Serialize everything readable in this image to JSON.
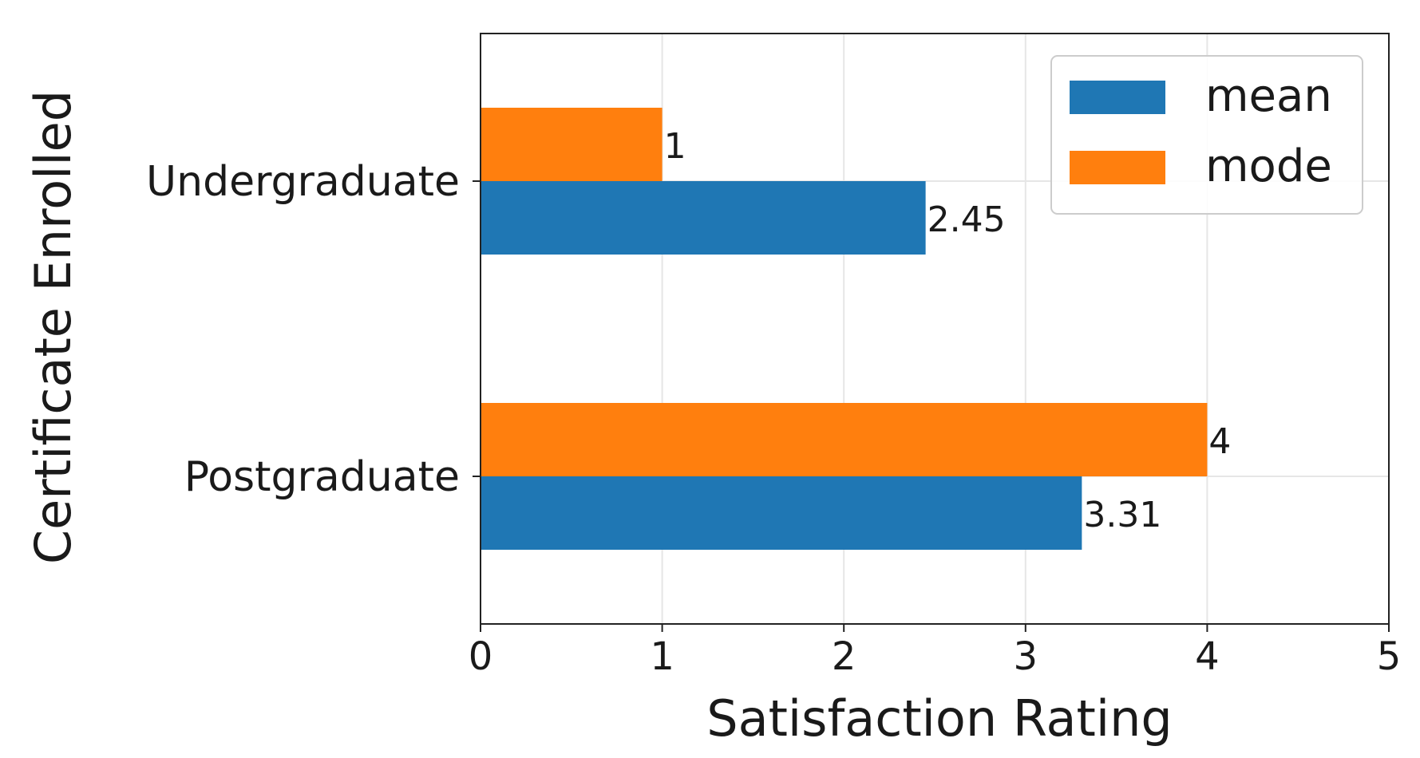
{
  "chart_data": {
    "type": "bar",
    "orientation": "horizontal",
    "title": "",
    "xlabel": "Satisfaction Rating",
    "ylabel": "Certificate Enrolled",
    "categories": [
      "Undergraduate",
      "Postgraduate"
    ],
    "series": [
      {
        "name": "mean",
        "color": "#1f77b4",
        "values": [
          2.45,
          3.31
        ],
        "labels": [
          "2.45",
          "3.31"
        ]
      },
      {
        "name": "mode",
        "color": "#ff7f0e",
        "values": [
          1,
          4
        ],
        "labels": [
          "1",
          "4"
        ]
      }
    ],
    "xlim": [
      0,
      5
    ],
    "xticks": [
      0,
      1,
      2,
      3,
      4,
      5
    ],
    "xtick_labels": [
      "0",
      "1",
      "2",
      "3",
      "4",
      "5"
    ],
    "grid": true,
    "legend": {
      "position": "top-right",
      "entries": [
        "mean",
        "mode"
      ]
    }
  }
}
